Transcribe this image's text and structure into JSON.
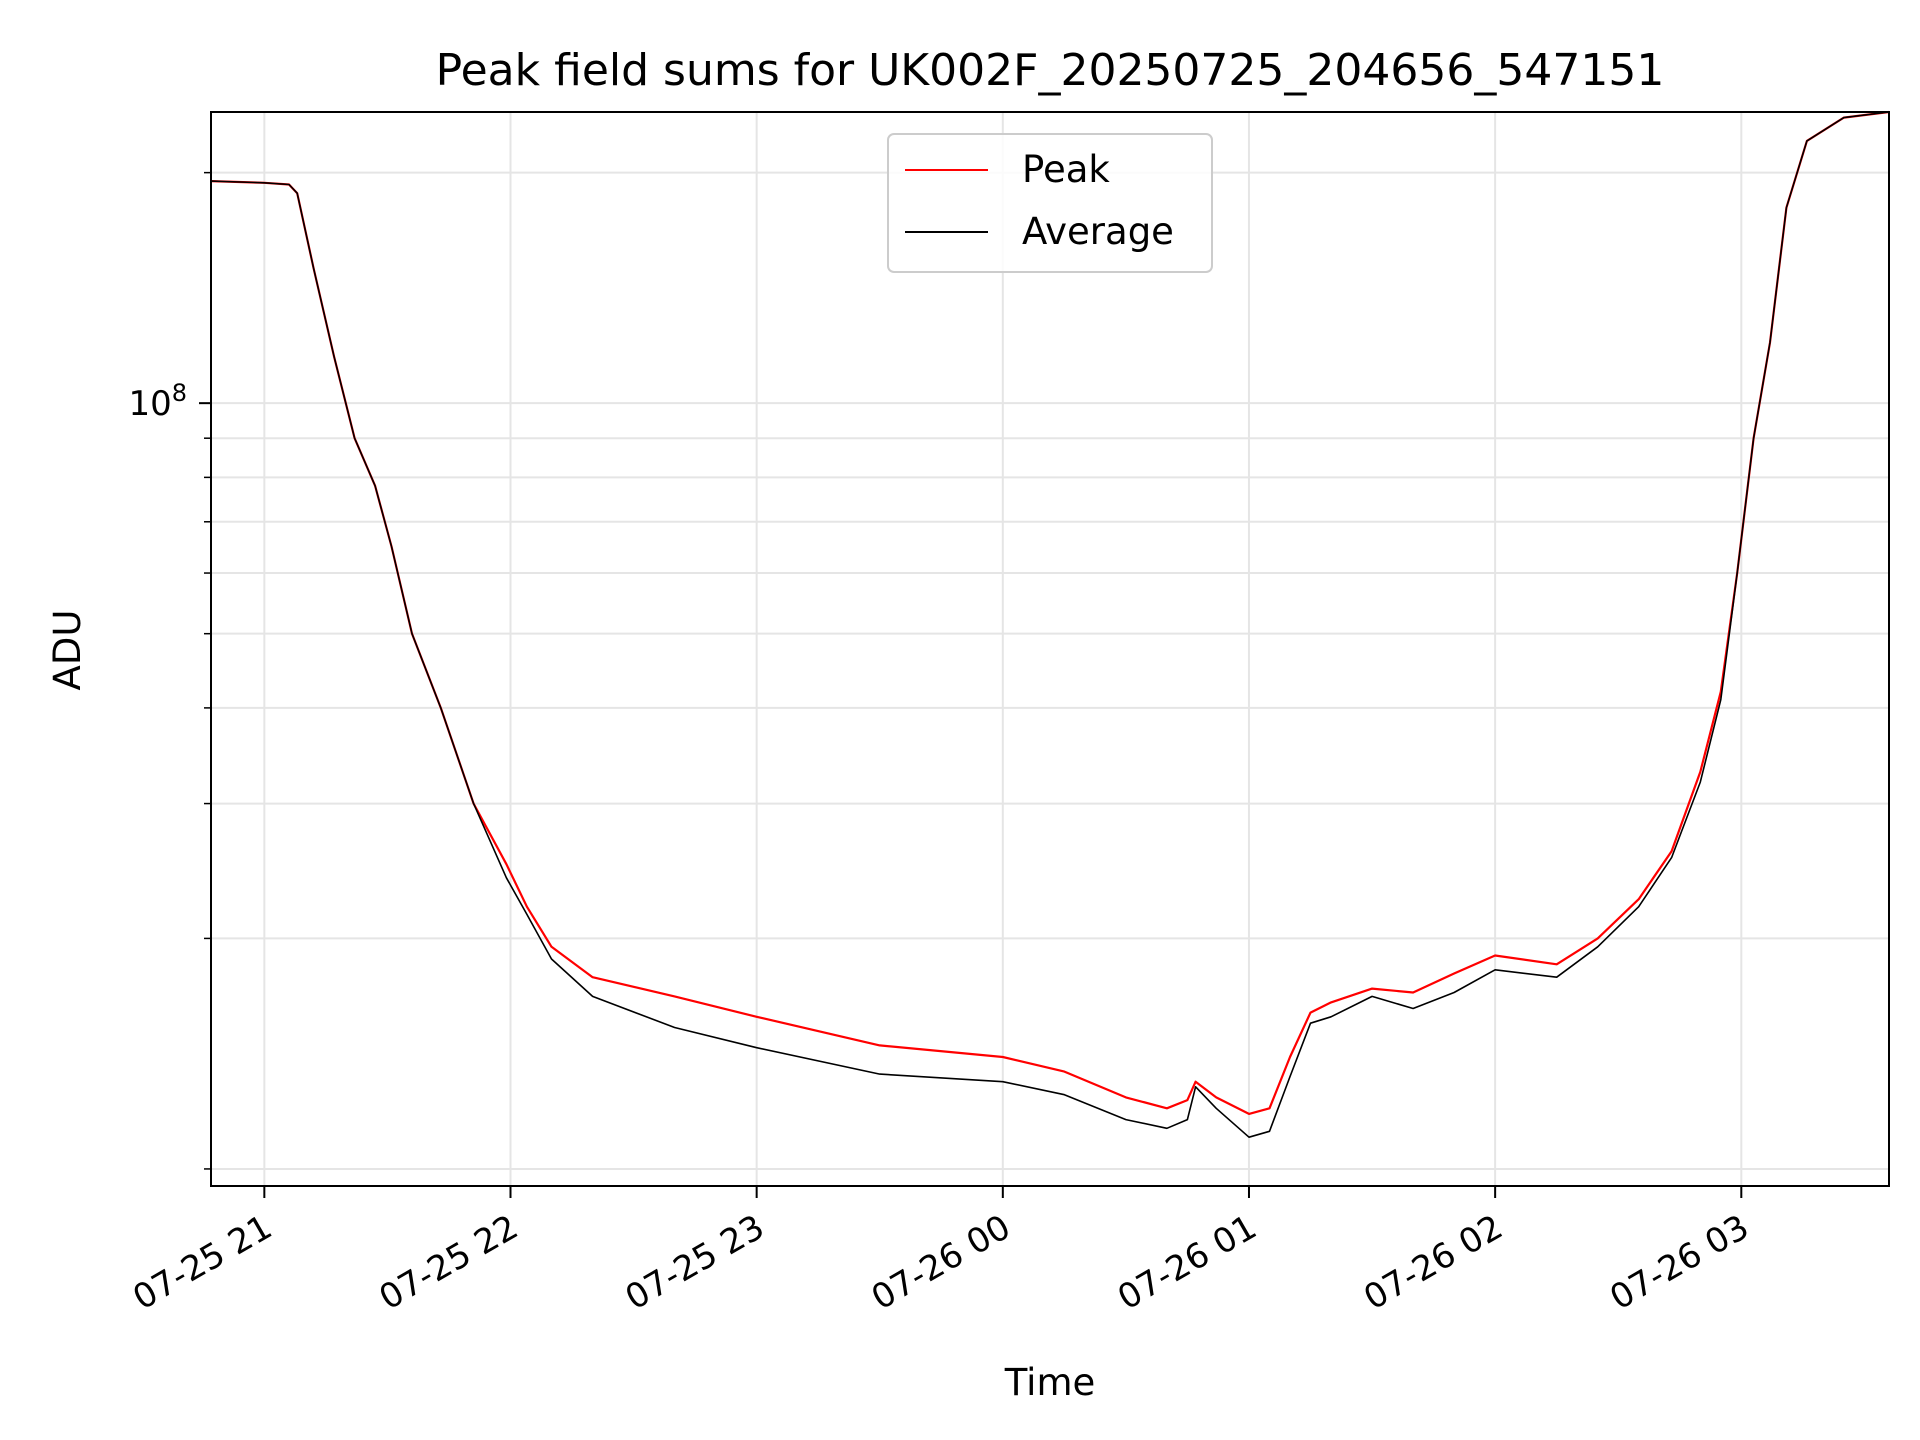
{
  "chart_data": {
    "type": "line",
    "title": "Peak field sums for UK002F_20250725_204656_547151",
    "xlabel": "Time",
    "ylabel": "ADU",
    "yscale": "log",
    "grid": true,
    "legend_position": "top-center",
    "x_range": [
      "2025-07-25 20:47",
      "2025-07-26 03:36"
    ],
    "ylim": [
      9500000,
      240000000
    ],
    "x_ticks": [
      {
        "t": "2025-07-25 21:00",
        "label": "07-25 21"
      },
      {
        "t": "2025-07-25 22:00",
        "label": "07-25 22"
      },
      {
        "t": "2025-07-25 23:00",
        "label": "07-25 23"
      },
      {
        "t": "2025-07-26 00:00",
        "label": "07-26 00"
      },
      {
        "t": "2025-07-26 01:00",
        "label": "07-26 01"
      },
      {
        "t": "2025-07-26 02:00",
        "label": "07-26 02"
      },
      {
        "t": "2025-07-26 03:00",
        "label": "07-26 03"
      }
    ],
    "y_major_tick": {
      "value": 100000000,
      "label_base": "10",
      "label_exp": "8"
    },
    "y_minor_ticks": [
      10000000,
      20000000,
      30000000,
      40000000,
      50000000,
      60000000,
      70000000,
      80000000,
      90000000,
      200000000
    ],
    "series": [
      {
        "name": "Peak",
        "color": "#ff0000",
        "points": [
          [
            "2025-07-25 20:47",
            195000000
          ],
          [
            "2025-07-25 21:00",
            194000000
          ],
          [
            "2025-07-25 21:06",
            193000000
          ],
          [
            "2025-07-25 21:08",
            188000000
          ],
          [
            "2025-07-25 21:12",
            150000000
          ],
          [
            "2025-07-25 21:17",
            115000000
          ],
          [
            "2025-07-25 21:22",
            90000000
          ],
          [
            "2025-07-25 21:27",
            78000000
          ],
          [
            "2025-07-25 21:31",
            65000000
          ],
          [
            "2025-07-25 21:36",
            50000000
          ],
          [
            "2025-07-25 21:43",
            40000000
          ],
          [
            "2025-07-25 21:51",
            30000000
          ],
          [
            "2025-07-25 21:59",
            25000000
          ],
          [
            "2025-07-25 22:04",
            22000000
          ],
          [
            "2025-07-25 22:10",
            19500000
          ],
          [
            "2025-07-25 22:20",
            17800000
          ],
          [
            "2025-07-25 22:40",
            16800000
          ],
          [
            "2025-07-25 23:00",
            15800000
          ],
          [
            "2025-07-25 23:30",
            14500000
          ],
          [
            "2025-07-26 00:00",
            14000000
          ],
          [
            "2025-07-26 00:15",
            13400000
          ],
          [
            "2025-07-26 00:30",
            12400000
          ],
          [
            "2025-07-26 00:40",
            12000000
          ],
          [
            "2025-07-26 00:45",
            12300000
          ],
          [
            "2025-07-26 00:47",
            13000000
          ],
          [
            "2025-07-26 00:52",
            12400000
          ],
          [
            "2025-07-26 01:00",
            11800000
          ],
          [
            "2025-07-26 01:05",
            12000000
          ],
          [
            "2025-07-26 01:10",
            14000000
          ],
          [
            "2025-07-26 01:15",
            16000000
          ],
          [
            "2025-07-26 01:20",
            16500000
          ],
          [
            "2025-07-26 01:30",
            17200000
          ],
          [
            "2025-07-26 01:40",
            17000000
          ],
          [
            "2025-07-26 01:50",
            18000000
          ],
          [
            "2025-07-26 02:00",
            19000000
          ],
          [
            "2025-07-26 02:15",
            18500000
          ],
          [
            "2025-07-26 02:25",
            20000000
          ],
          [
            "2025-07-26 02:35",
            22500000
          ],
          [
            "2025-07-26 02:43",
            26000000
          ],
          [
            "2025-07-26 02:50",
            33000000
          ],
          [
            "2025-07-26 02:55",
            42000000
          ],
          [
            "2025-07-26 02:59",
            60000000
          ],
          [
            "2025-07-26 03:03",
            90000000
          ],
          [
            "2025-07-26 03:07",
            120000000
          ],
          [
            "2025-07-26 03:11",
            180000000
          ],
          [
            "2025-07-26 03:16",
            220000000
          ],
          [
            "2025-07-26 03:25",
            236000000
          ],
          [
            "2025-07-26 03:36",
            240000000
          ]
        ]
      },
      {
        "name": "Average",
        "color": "#000000",
        "points": [
          [
            "2025-07-25 20:47",
            195000000
          ],
          [
            "2025-07-25 21:00",
            194000000
          ],
          [
            "2025-07-25 21:06",
            193000000
          ],
          [
            "2025-07-25 21:08",
            188000000
          ],
          [
            "2025-07-25 21:12",
            150000000
          ],
          [
            "2025-07-25 21:17",
            115000000
          ],
          [
            "2025-07-25 21:22",
            90000000
          ],
          [
            "2025-07-25 21:27",
            78000000
          ],
          [
            "2025-07-25 21:31",
            65000000
          ],
          [
            "2025-07-25 21:36",
            50000000
          ],
          [
            "2025-07-25 21:43",
            40000000
          ],
          [
            "2025-07-25 21:51",
            30000000
          ],
          [
            "2025-07-25 21:59",
            24000000
          ],
          [
            "2025-07-25 22:04",
            21500000
          ],
          [
            "2025-07-25 22:10",
            18800000
          ],
          [
            "2025-07-25 22:20",
            16800000
          ],
          [
            "2025-07-25 22:40",
            15300000
          ],
          [
            "2025-07-25 23:00",
            14400000
          ],
          [
            "2025-07-25 23:30",
            13300000
          ],
          [
            "2025-07-26 00:00",
            13000000
          ],
          [
            "2025-07-26 00:15",
            12500000
          ],
          [
            "2025-07-26 00:30",
            11600000
          ],
          [
            "2025-07-26 00:40",
            11300000
          ],
          [
            "2025-07-26 00:45",
            11600000
          ],
          [
            "2025-07-26 00:47",
            12800000
          ],
          [
            "2025-07-26 00:52",
            12000000
          ],
          [
            "2025-07-26 01:00",
            11000000
          ],
          [
            "2025-07-26 01:05",
            11200000
          ],
          [
            "2025-07-26 01:10",
            13200000
          ],
          [
            "2025-07-26 01:15",
            15500000
          ],
          [
            "2025-07-26 01:20",
            15800000
          ],
          [
            "2025-07-26 01:30",
            16800000
          ],
          [
            "2025-07-26 01:40",
            16200000
          ],
          [
            "2025-07-26 01:50",
            17000000
          ],
          [
            "2025-07-26 02:00",
            18200000
          ],
          [
            "2025-07-26 02:15",
            17800000
          ],
          [
            "2025-07-26 02:25",
            19500000
          ],
          [
            "2025-07-26 02:35",
            22000000
          ],
          [
            "2025-07-26 02:43",
            25500000
          ],
          [
            "2025-07-26 02:50",
            32000000
          ],
          [
            "2025-07-26 02:55",
            41000000
          ],
          [
            "2025-07-26 02:59",
            60000000
          ],
          [
            "2025-07-26 03:03",
            90000000
          ],
          [
            "2025-07-26 03:07",
            120000000
          ],
          [
            "2025-07-26 03:11",
            180000000
          ],
          [
            "2025-07-26 03:16",
            220000000
          ],
          [
            "2025-07-26 03:25",
            236000000
          ],
          [
            "2025-07-26 03:36",
            240000000
          ]
        ]
      }
    ]
  }
}
